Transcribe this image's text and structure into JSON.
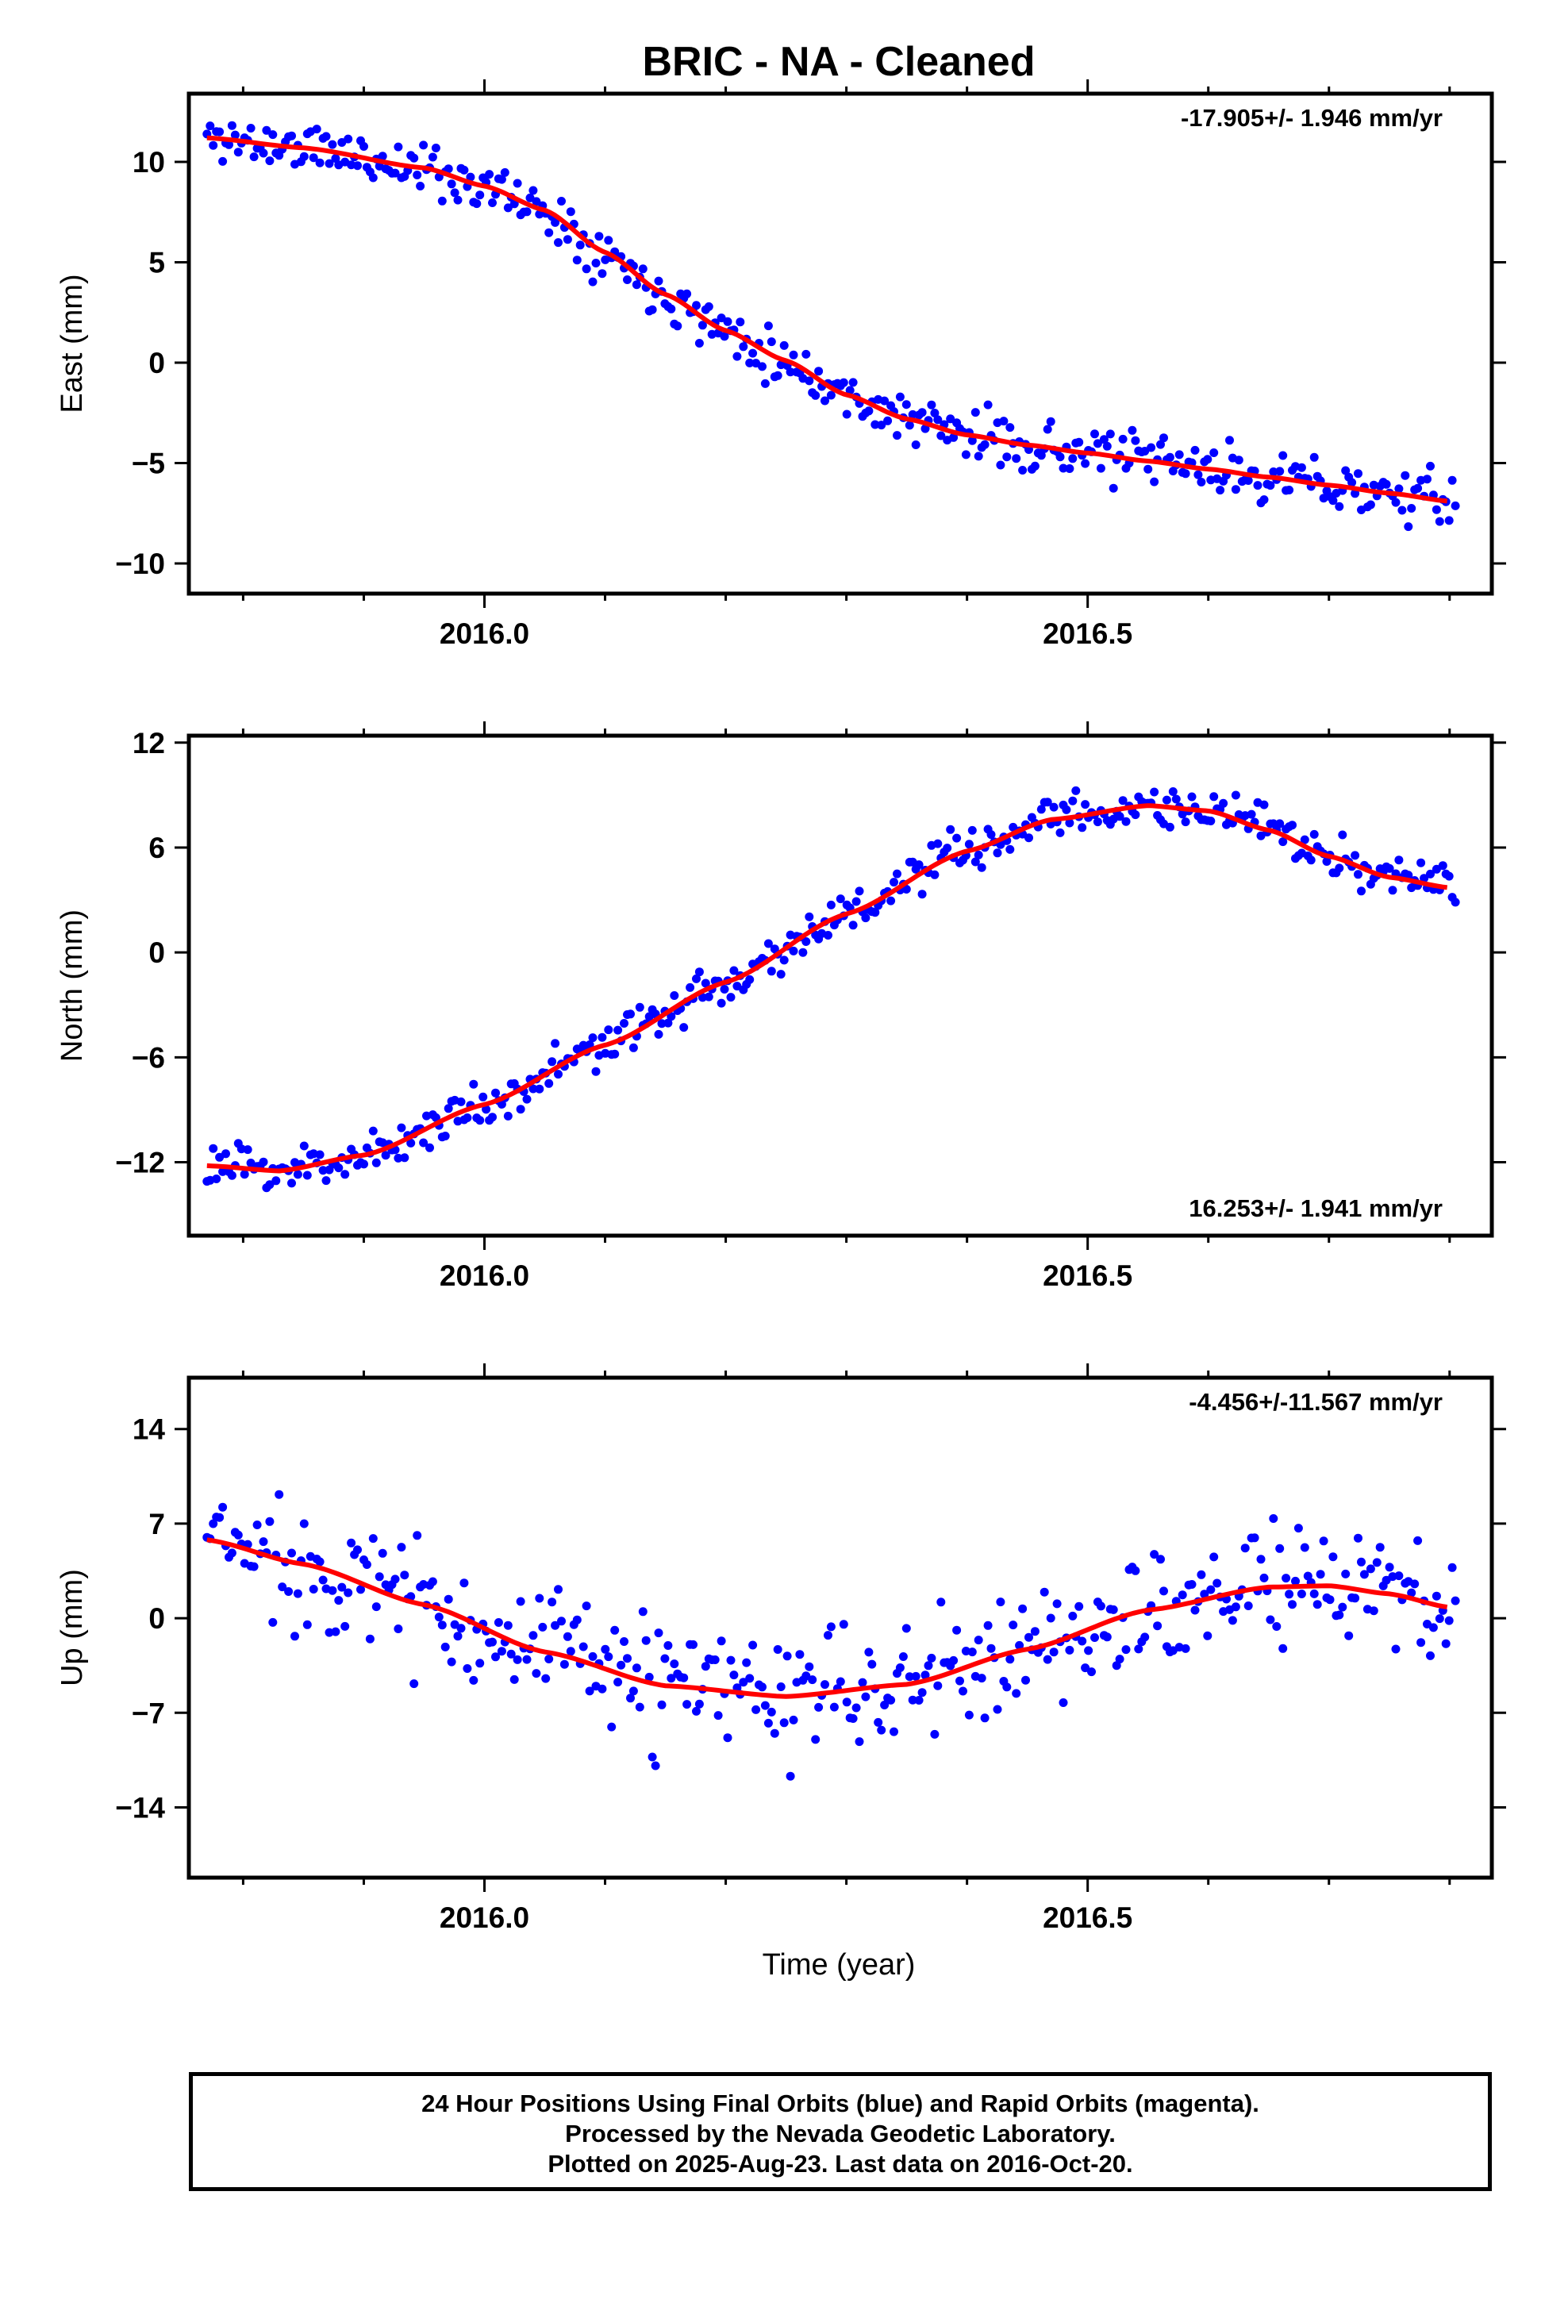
{
  "chart_data": {
    "title": "BRIC  - NA - Cleaned",
    "xlabel": "Time (year)",
    "x_range": [
      2015.755,
      2016.835
    ],
    "x_tick_labels": [
      "2016.0",
      "2016.5"
    ],
    "panels": [
      {
        "type": "scatter",
        "ylabel": "East (mm)",
        "ylim": [
          -11.5,
          13.4
        ],
        "yticks": [
          10,
          5,
          0,
          -5,
          -10
        ],
        "yticklabels": [
          "10",
          "5",
          "0",
          "−5",
          "−10"
        ],
        "rate_text": "-17.905+/- 1.946 mm/yr",
        "rate_position": "top-right",
        "point_color": "#0000ff",
        "fit_color": "#ff0000",
        "model_curve": {
          "x": [
            2015.77,
            2015.85,
            2015.95,
            2016.0,
            2016.05,
            2016.1,
            2016.15,
            2016.2,
            2016.25,
            2016.3,
            2016.35,
            2016.4,
            2016.45,
            2016.5,
            2016.55,
            2016.6,
            2016.65,
            2016.7,
            2016.75,
            2016.8
          ],
          "y": [
            11.2,
            10.7,
            9.7,
            8.8,
            7.6,
            5.5,
            3.4,
            1.6,
            0.1,
            -1.6,
            -2.8,
            -3.6,
            -4.1,
            -4.5,
            -4.9,
            -5.3,
            -5.7,
            -6.1,
            -6.5,
            -6.9
          ]
        },
        "trend_anchor_x": 2015.77,
        "trend_anchor_y": 11.1,
        "trend_rate": -17.905,
        "scatter_amplitude": 1.1,
        "seed": 11
      },
      {
        "type": "scatter",
        "ylabel": "North (mm)",
        "ylim": [
          -16.2,
          12.4
        ],
        "yticks": [
          12,
          6,
          0,
          -6,
          -12
        ],
        "yticklabels": [
          "12",
          "6",
          "0",
          "−6",
          "−12"
        ],
        "rate_text": "16.253+/- 1.941 mm/yr",
        "rate_position": "bottom-right",
        "point_color": "#0000ff",
        "fit_color": "#ff0000",
        "model_curve": {
          "x": [
            2015.77,
            2015.83,
            2015.9,
            2016.0,
            2016.1,
            2016.2,
            2016.3,
            2016.4,
            2016.47,
            2016.55,
            2016.6,
            2016.65,
            2016.7,
            2016.75,
            2016.8
          ],
          "y": [
            -12.2,
            -12.5,
            -11.6,
            -8.7,
            -5.3,
            -1.7,
            2.2,
            5.8,
            7.6,
            8.4,
            8.1,
            7.0,
            5.5,
            4.3,
            3.7
          ]
        },
        "trend_anchor_x": 2015.77,
        "trend_anchor_y": -12.5,
        "trend_rate": 16.253,
        "scatter_amplitude": 1.1,
        "seed": 23
      },
      {
        "type": "scatter",
        "ylabel": "Up (mm)",
        "ylim": [
          -19.2,
          17.8
        ],
        "yticks": [
          14,
          7,
          0,
          -7,
          -14
        ],
        "yticklabels": [
          "14",
          "7",
          "0",
          "−7",
          "−14"
        ],
        "rate_text": "-4.456+/-11.567 mm/yr",
        "rate_position": "top-right",
        "point_color": "#0000ff",
        "fit_color": "#ff0000",
        "model_curve": {
          "x": [
            2015.77,
            2015.85,
            2015.95,
            2016.05,
            2016.15,
            2016.25,
            2016.35,
            2016.45,
            2016.55,
            2016.65,
            2016.7,
            2016.75,
            2016.8
          ],
          "y": [
            5.8,
            4.0,
            1.0,
            -2.5,
            -5.0,
            -5.8,
            -4.9,
            -2.3,
            0.6,
            2.3,
            2.4,
            1.8,
            0.8
          ]
        },
        "trend_anchor_x": 2015.77,
        "trend_anchor_y": 5.0,
        "trend_rate": -4.456,
        "scatter_amplitude": 4.0,
        "seed": 37
      }
    ]
  },
  "footer": {
    "line1": "24 Hour Positions Using Final Orbits (blue) and Rapid Orbits (magenta).",
    "line2": "Processed by the Nevada Geodetic Laboratory.",
    "line3": "Plotted on 2025-Aug-23. Last data on 2016-Oct-20."
  }
}
